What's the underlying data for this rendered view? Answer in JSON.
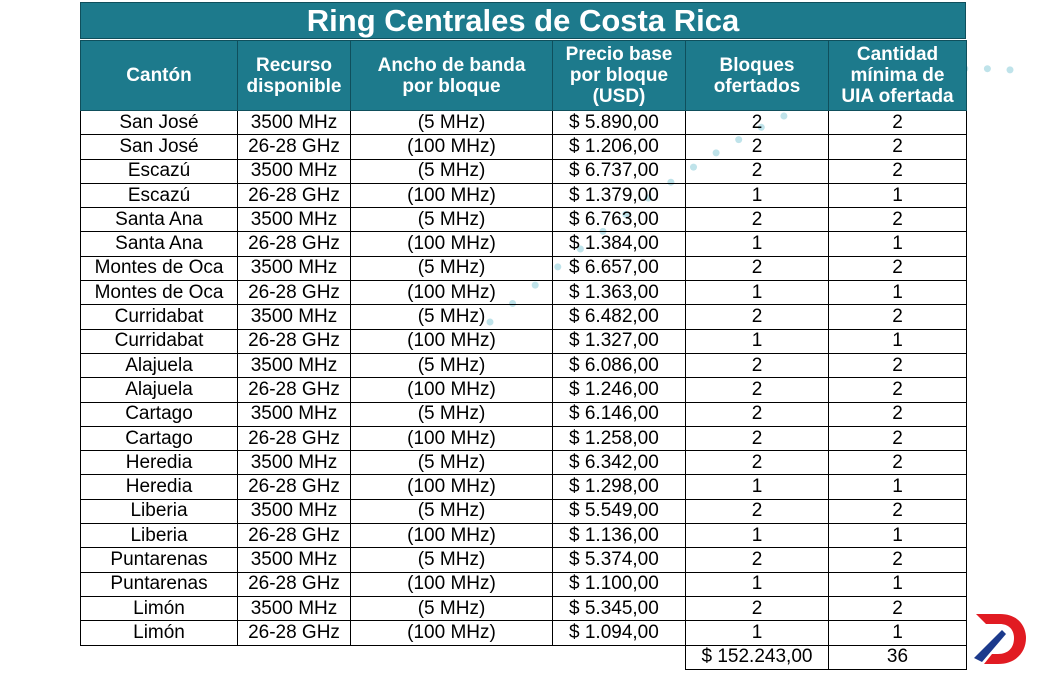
{
  "title": "Ring Centrales de Costa Rica",
  "headers": {
    "canton": "Cantón",
    "recurso": [
      "Recurso",
      "disponible"
    ],
    "ancho": [
      "Ancho de banda",
      "por bloque"
    ],
    "precio": [
      "Precio base",
      "por bloque",
      "(USD)"
    ],
    "bloques": [
      "Bloques",
      "ofertados"
    ],
    "cantidad": [
      "Cantidad",
      "mínima de",
      "UIA ofertada"
    ]
  },
  "rows": [
    {
      "canton": "San José",
      "recurso": "3500 MHz",
      "ancho": "(5 MHz)",
      "precio": "$ 5.890,00",
      "bloques": "2",
      "cantidad": "2"
    },
    {
      "canton": "San José",
      "recurso": "26-28 GHz",
      "ancho": "(100 MHz)",
      "precio": "$ 1.206,00",
      "bloques": "2",
      "cantidad": "2"
    },
    {
      "canton": "Escazú",
      "recurso": "3500 MHz",
      "ancho": "(5 MHz)",
      "precio": "$ 6.737,00",
      "bloques": "2",
      "cantidad": "2"
    },
    {
      "canton": "Escazú",
      "recurso": "26-28 GHz",
      "ancho": "(100 MHz)",
      "precio": "$ 1.379,00",
      "bloques": "1",
      "cantidad": "1"
    },
    {
      "canton": "Santa Ana",
      "recurso": "3500 MHz",
      "ancho": "(5 MHz)",
      "precio": "$ 6.763,00",
      "bloques": "2",
      "cantidad": "2"
    },
    {
      "canton": "Santa Ana",
      "recurso": "26-28 GHz",
      "ancho": "(100 MHz)",
      "precio": "$ 1.384,00",
      "bloques": "1",
      "cantidad": "1"
    },
    {
      "canton": "Montes de Oca",
      "recurso": "3500 MHz",
      "ancho": "(5 MHz)",
      "precio": "$ 6.657,00",
      "bloques": "2",
      "cantidad": "2"
    },
    {
      "canton": "Montes de Oca",
      "recurso": "26-28 GHz",
      "ancho": "(100 MHz)",
      "precio": "$ 1.363,00",
      "bloques": "1",
      "cantidad": "1"
    },
    {
      "canton": "Curridabat",
      "recurso": "3500 MHz",
      "ancho": "(5 MHz)",
      "precio": "$ 6.482,00",
      "bloques": "2",
      "cantidad": "2"
    },
    {
      "canton": "Curridabat",
      "recurso": "26-28 GHz",
      "ancho": "(100 MHz)",
      "precio": "$ 1.327,00",
      "bloques": "1",
      "cantidad": "1"
    },
    {
      "canton": "Alajuela",
      "recurso": "3500 MHz",
      "ancho": "(5 MHz)",
      "precio": "$ 6.086,00",
      "bloques": "2",
      "cantidad": "2"
    },
    {
      "canton": "Alajuela",
      "recurso": "26-28 GHz",
      "ancho": "(100 MHz)",
      "precio": "$ 1.246,00",
      "bloques": "2",
      "cantidad": "2"
    },
    {
      "canton": "Cartago",
      "recurso": "3500 MHz",
      "ancho": "(5 MHz)",
      "precio": "$ 6.146,00",
      "bloques": "2",
      "cantidad": "2"
    },
    {
      "canton": "Cartago",
      "recurso": "26-28 GHz",
      "ancho": "(100 MHz)",
      "precio": "$ 1.258,00",
      "bloques": "2",
      "cantidad": "2"
    },
    {
      "canton": "Heredia",
      "recurso": "3500 MHz",
      "ancho": "(5 MHz)",
      "precio": "$ 6.342,00",
      "bloques": "2",
      "cantidad": "2"
    },
    {
      "canton": "Heredia",
      "recurso": "26-28 GHz",
      "ancho": "(100 MHz)",
      "precio": "$ 1.298,00",
      "bloques": "1",
      "cantidad": "1"
    },
    {
      "canton": "Liberia",
      "recurso": "3500 MHz",
      "ancho": "(5 MHz)",
      "precio": "$ 5.549,00",
      "bloques": "2",
      "cantidad": "2"
    },
    {
      "canton": "Liberia",
      "recurso": "26-28 GHz",
      "ancho": "(100 MHz)",
      "precio": "$ 1.136,00",
      "bloques": "1",
      "cantidad": "1"
    },
    {
      "canton": "Puntarenas",
      "recurso": "3500 MHz",
      "ancho": "(5 MHz)",
      "precio": "$ 5.374,00",
      "bloques": "2",
      "cantidad": "2"
    },
    {
      "canton": "Puntarenas",
      "recurso": "26-28 GHz",
      "ancho": "(100 MHz)",
      "precio": "$ 1.100,00",
      "bloques": "1",
      "cantidad": "1"
    },
    {
      "canton": "Limón",
      "recurso": "3500 MHz",
      "ancho": "(5 MHz)",
      "precio": "$ 5.345,00",
      "bloques": "2",
      "cantidad": "2"
    },
    {
      "canton": "Limón",
      "recurso": "26-28 GHz",
      "ancho": "(100 MHz)",
      "precio": "$ 1.094,00",
      "bloques": "1",
      "cantidad": "1"
    }
  ],
  "totals": {
    "bloques": "$ 152.243,00",
    "cantidad": "36"
  },
  "colors": {
    "header_bg": "#1d7a8c",
    "dots": "#bfe3ea",
    "logo_red": "#e11b22",
    "logo_blue": "#1c3a8c"
  },
  "logo_icon": "logo-d-icon"
}
